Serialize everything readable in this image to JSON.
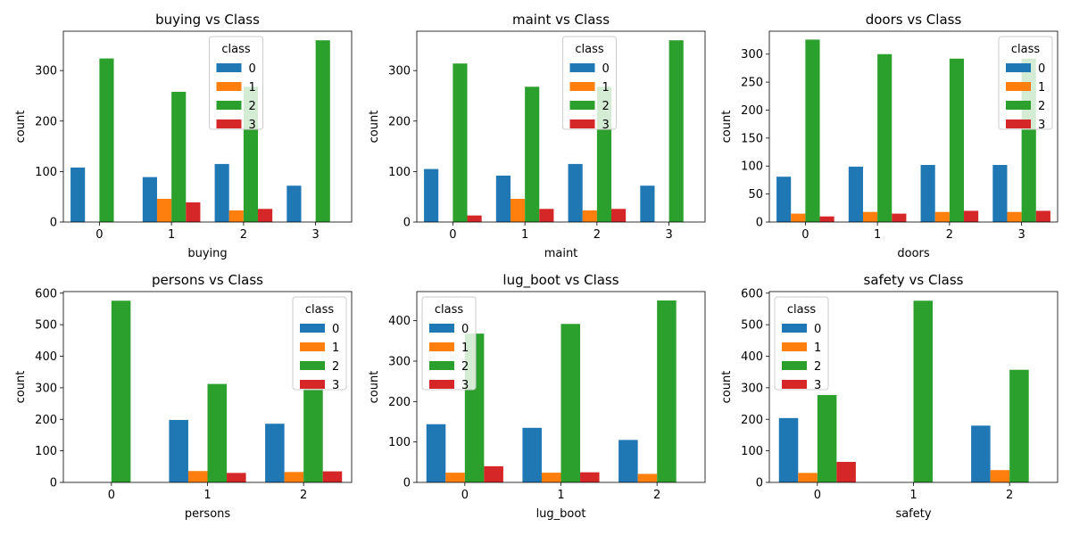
{
  "colors": {
    "0": "#1f77b4",
    "1": "#ff7f0e",
    "2": "#2ca02c",
    "3": "#d62728"
  },
  "legend_title": "class",
  "legend_labels": [
    "0",
    "1",
    "2",
    "3"
  ],
  "chart_data": [
    {
      "type": "bar",
      "title": "buying vs Class",
      "xlabel": "buying",
      "ylabel": "count",
      "categories": [
        "0",
        "1",
        "2",
        "3"
      ],
      "ylim": [
        0,
        378
      ],
      "yticks": [
        0,
        100,
        200,
        300
      ],
      "legend": "top-center",
      "series": [
        {
          "name": "0",
          "values": [
            108,
            89,
            115,
            72
          ]
        },
        {
          "name": "1",
          "values": [
            0,
            46,
            23,
            0
          ]
        },
        {
          "name": "2",
          "values": [
            324,
            258,
            268,
            360
          ]
        },
        {
          "name": "3",
          "values": [
            0,
            39,
            26,
            0
          ]
        }
      ]
    },
    {
      "type": "bar",
      "title": "maint vs Class",
      "xlabel": "maint",
      "ylabel": "count",
      "categories": [
        "0",
        "1",
        "2",
        "3"
      ],
      "ylim": [
        0,
        378
      ],
      "yticks": [
        0,
        100,
        200,
        300
      ],
      "legend": "top-center",
      "series": [
        {
          "name": "0",
          "values": [
            105,
            92,
            115,
            72
          ]
        },
        {
          "name": "1",
          "values": [
            0,
            46,
            23,
            0
          ]
        },
        {
          "name": "2",
          "values": [
            314,
            268,
            268,
            360
          ]
        },
        {
          "name": "3",
          "values": [
            13,
            26,
            26,
            0
          ]
        }
      ]
    },
    {
      "type": "bar",
      "title": "doors vs Class",
      "xlabel": "doors",
      "ylabel": "count",
      "categories": [
        "0",
        "1",
        "2",
        "3"
      ],
      "ylim": [
        0,
        341
      ],
      "yticks": [
        0,
        50,
        100,
        150,
        200,
        250,
        300
      ],
      "legend": "top-right",
      "series": [
        {
          "name": "0",
          "values": [
            81,
            99,
            102,
            102
          ]
        },
        {
          "name": "1",
          "values": [
            15,
            18,
            18,
            18
          ]
        },
        {
          "name": "2",
          "values": [
            326,
            300,
            292,
            292
          ]
        },
        {
          "name": "3",
          "values": [
            10,
            15,
            20,
            20
          ]
        }
      ]
    },
    {
      "type": "bar",
      "title": "persons vs Class",
      "xlabel": "persons",
      "ylabel": "count",
      "categories": [
        "0",
        "1",
        "2"
      ],
      "ylim": [
        0,
        605
      ],
      "yticks": [
        0,
        100,
        200,
        300,
        400,
        500,
        600
      ],
      "legend": "top-right",
      "series": [
        {
          "name": "0",
          "values": [
            0,
            198,
            186
          ]
        },
        {
          "name": "1",
          "values": [
            0,
            36,
            33
          ]
        },
        {
          "name": "2",
          "values": [
            576,
            312,
            322
          ]
        },
        {
          "name": "3",
          "values": [
            0,
            30,
            35
          ]
        }
      ]
    },
    {
      "type": "bar",
      "title": "lug_boot vs Class",
      "xlabel": "lug_boot",
      "ylabel": "count",
      "categories": [
        "0",
        "1",
        "2"
      ],
      "ylim": [
        0,
        472
      ],
      "yticks": [
        0,
        100,
        200,
        300,
        400
      ],
      "legend": "top-left",
      "series": [
        {
          "name": "0",
          "values": [
            144,
            135,
            105
          ]
        },
        {
          "name": "1",
          "values": [
            24,
            24,
            21
          ]
        },
        {
          "name": "2",
          "values": [
            368,
            392,
            450
          ]
        },
        {
          "name": "3",
          "values": [
            40,
            25,
            0
          ]
        }
      ]
    },
    {
      "type": "bar",
      "title": "safety vs Class",
      "xlabel": "safety",
      "ylabel": "count",
      "categories": [
        "0",
        "1",
        "2"
      ],
      "ylim": [
        0,
        605
      ],
      "yticks": [
        0,
        100,
        200,
        300,
        400,
        500,
        600
      ],
      "legend": "top-left",
      "series": [
        {
          "name": "0",
          "values": [
            204,
            0,
            180
          ]
        },
        {
          "name": "1",
          "values": [
            30,
            0,
            39
          ]
        },
        {
          "name": "2",
          "values": [
            277,
            576,
            357
          ]
        },
        {
          "name": "3",
          "values": [
            65,
            0,
            0
          ]
        }
      ]
    }
  ]
}
